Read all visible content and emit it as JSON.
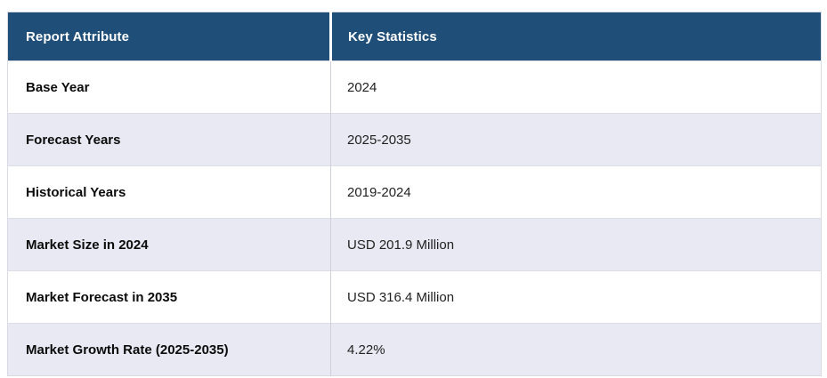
{
  "table": {
    "columns": [
      {
        "label": "Report Attribute"
      },
      {
        "label": "Key Statistics"
      }
    ],
    "rows": [
      {
        "attribute": "Base Year",
        "value": "2024"
      },
      {
        "attribute": "Forecast Years",
        "value": "2025-2035"
      },
      {
        "attribute": "Historical Years",
        "value": "2019-2024"
      },
      {
        "attribute": "Market Size in 2024",
        "value": "USD 201.9 Million"
      },
      {
        "attribute": "Market Forecast in 2035",
        "value": "USD 316.4 Million"
      },
      {
        "attribute": "Market Growth Rate (2025-2035)",
        "value": "4.22%"
      }
    ],
    "colors": {
      "header_bg": "#1F4E79",
      "header_text": "#FFFFFF",
      "row_bg": "#FFFFFF",
      "row_alt_bg": "#E8E9F3",
      "border": "#DCDDE5",
      "attribute_text": "#0B0B0B",
      "value_text": "#222222"
    }
  },
  "chart_data": {
    "type": "table",
    "title": "Report Attribute / Key Statistics",
    "columns": [
      "Report Attribute",
      "Key Statistics"
    ],
    "rows": [
      [
        "Base Year",
        "2024"
      ],
      [
        "Forecast Years",
        "2025-2035"
      ],
      [
        "Historical Years",
        "2019-2024"
      ],
      [
        "Market Size in 2024",
        "USD 201.9 Million"
      ],
      [
        "Market Forecast in 2035",
        "USD 316.4 Million"
      ],
      [
        "Market Growth Rate (2025-2035)",
        "4.22%"
      ]
    ]
  }
}
